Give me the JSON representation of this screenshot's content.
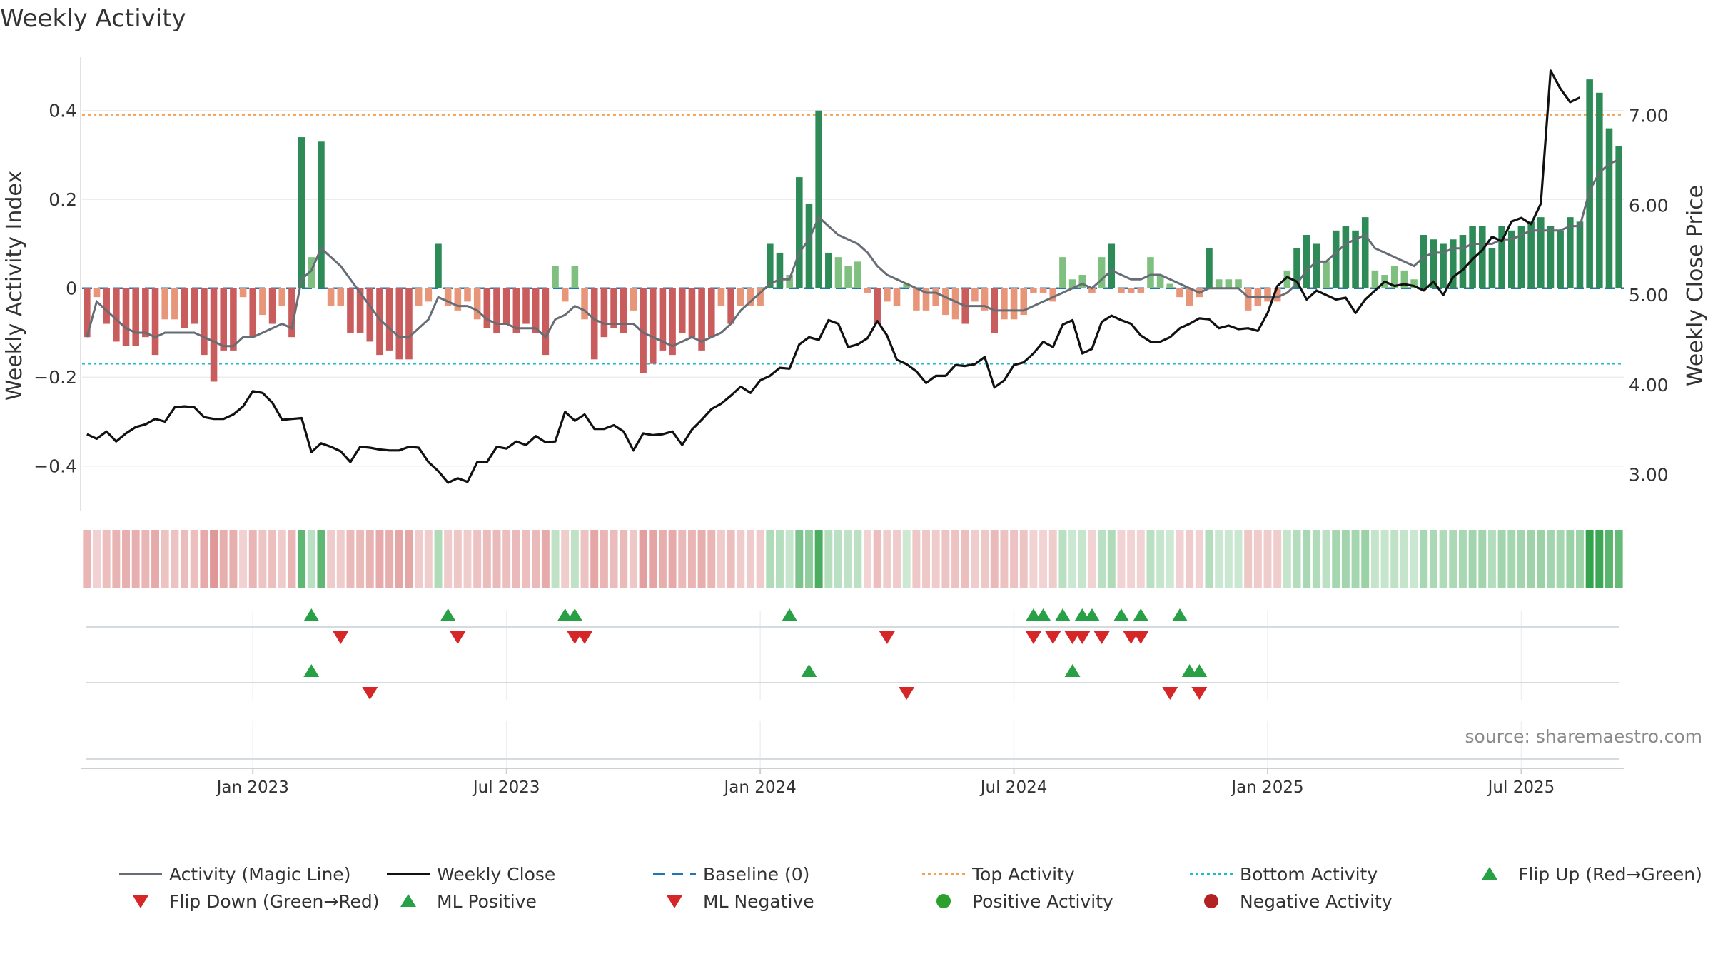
{
  "chart_data": {
    "type": "bar",
    "title": "Weekly Activity",
    "ylabel": "Weekly Activity Index",
    "y2label": "Weekly Close Price",
    "source": "source: sharemaestro.com",
    "ylim": [
      -0.5,
      0.52
    ],
    "y2lim": [
      2.6,
      7.65
    ],
    "yticks": [
      0.4,
      0.2,
      0,
      -0.2,
      -0.4
    ],
    "ytick_labels": [
      "0.4",
      "0.2",
      "0",
      "−0.2",
      "−0.4"
    ],
    "y2ticks": [
      7.0,
      6.0,
      5.0,
      4.0,
      3.0
    ],
    "y2tick_labels": [
      "7.00",
      "6.00",
      "5.00",
      "4.00",
      "3.00"
    ],
    "x_start": "2022-09-05",
    "x_end": "2025-09-22",
    "xticks": [
      {
        "label": "Jan 2023",
        "week": 17
      },
      {
        "label": "Jul 2023",
        "week": 43
      },
      {
        "label": "Jan 2024",
        "week": 69
      },
      {
        "label": "Jul 2024",
        "week": 95
      },
      {
        "label": "Jan 2025",
        "week": 121
      },
      {
        "label": "Jul 2025",
        "week": 147
      }
    ],
    "top_activity": 0.39,
    "bottom_activity": -0.17,
    "activity": [
      -0.11,
      -0.02,
      -0.08,
      -0.12,
      -0.13,
      -0.13,
      -0.11,
      -0.15,
      -0.07,
      -0.07,
      -0.09,
      -0.08,
      -0.15,
      -0.21,
      -0.14,
      -0.14,
      -0.02,
      -0.11,
      -0.06,
      -0.08,
      -0.04,
      -0.11,
      0.34,
      0.07,
      0.33,
      -0.04,
      -0.04,
      -0.1,
      -0.1,
      -0.12,
      -0.15,
      -0.14,
      -0.16,
      -0.16,
      -0.04,
      -0.03,
      0.1,
      -0.04,
      -0.05,
      -0.03,
      -0.07,
      -0.09,
      -0.1,
      -0.08,
      -0.1,
      -0.08,
      -0.1,
      -0.15,
      0.05,
      -0.03,
      0.05,
      -0.07,
      -0.16,
      -0.11,
      -0.09,
      -0.1,
      -0.05,
      -0.19,
      -0.17,
      -0.14,
      -0.15,
      -0.1,
      -0.11,
      -0.14,
      -0.11,
      -0.04,
      -0.08,
      -0.04,
      -0.04,
      -0.04,
      0.1,
      0.08,
      0.03,
      0.25,
      0.19,
      0.4,
      0.08,
      0.07,
      0.05,
      0.06,
      -0.01,
      -0.08,
      -0.03,
      -0.04,
      0.01,
      -0.05,
      -0.05,
      -0.04,
      -0.06,
      -0.07,
      -0.08,
      -0.03,
      -0.05,
      -0.1,
      -0.07,
      -0.07,
      -0.06,
      -0.01,
      -0.01,
      -0.03,
      0.07,
      0.02,
      0.03,
      -0.01,
      0.07,
      0.1,
      -0.01,
      -0.01,
      -0.01,
      0.07,
      0.03,
      0.01,
      -0.02,
      -0.04,
      -0.02,
      0.09,
      0.02,
      0.02,
      0.02,
      -0.05,
      -0.04,
      -0.03,
      -0.03,
      0.04,
      0.09,
      0.12,
      0.1,
      0.06,
      0.13,
      0.14,
      0.13,
      0.16,
      0.04,
      0.03,
      0.05,
      0.04,
      0.02,
      0.12,
      0.11,
      0.1,
      0.11,
      0.12,
      0.14,
      0.14,
      0.09,
      0.14,
      0.13,
      0.14,
      0.15,
      0.16,
      0.14,
      0.13,
      0.16,
      0.15,
      0.47,
      0.44,
      0.36,
      0.32
    ],
    "magic_line": [
      -0.11,
      -0.03,
      -0.05,
      -0.07,
      -0.09,
      -0.1,
      -0.1,
      -0.11,
      -0.1,
      -0.1,
      -0.1,
      -0.1,
      -0.11,
      -0.12,
      -0.13,
      -0.13,
      -0.11,
      -0.11,
      -0.1,
      -0.09,
      -0.08,
      -0.09,
      0.02,
      0.04,
      0.09,
      0.07,
      0.05,
      0.02,
      -0.01,
      -0.04,
      -0.07,
      -0.09,
      -0.11,
      -0.11,
      -0.09,
      -0.07,
      -0.02,
      -0.03,
      -0.04,
      -0.04,
      -0.05,
      -0.07,
      -0.08,
      -0.08,
      -0.09,
      -0.09,
      -0.09,
      -0.11,
      -0.07,
      -0.06,
      -0.04,
      -0.05,
      -0.07,
      -0.08,
      -0.08,
      -0.08,
      -0.08,
      -0.1,
      -0.11,
      -0.12,
      -0.13,
      -0.12,
      -0.11,
      -0.12,
      -0.11,
      -0.1,
      -0.08,
      -0.05,
      -0.03,
      -0.01,
      0.01,
      0.02,
      0.02,
      0.08,
      0.11,
      0.16,
      0.14,
      0.12,
      0.11,
      0.1,
      0.08,
      0.05,
      0.03,
      0.02,
      0.01,
      0.0,
      -0.01,
      -0.01,
      -0.02,
      -0.03,
      -0.04,
      -0.04,
      -0.04,
      -0.05,
      -0.05,
      -0.05,
      -0.05,
      -0.04,
      -0.03,
      -0.02,
      -0.01,
      0.0,
      0.01,
      0.0,
      0.02,
      0.04,
      0.03,
      0.02,
      0.02,
      0.03,
      0.03,
      0.02,
      0.01,
      0.0,
      -0.01,
      0.0,
      0.0,
      0.0,
      0.0,
      -0.02,
      -0.02,
      -0.02,
      -0.02,
      -0.01,
      0.01,
      0.04,
      0.06,
      0.06,
      0.08,
      0.1,
      0.11,
      0.12,
      0.09,
      0.08,
      0.07,
      0.06,
      0.05,
      0.07,
      0.08,
      0.08,
      0.09,
      0.09,
      0.1,
      0.1,
      0.1,
      0.11,
      0.11,
      0.12,
      0.13,
      0.13,
      0.13,
      0.13,
      0.14,
      0.14,
      0.22,
      0.26,
      0.28,
      0.29
    ],
    "weekly_close": [
      3.45,
      3.4,
      3.48,
      3.37,
      3.46,
      3.53,
      3.56,
      3.62,
      3.59,
      3.75,
      3.76,
      3.75,
      3.64,
      3.62,
      3.62,
      3.67,
      3.76,
      3.93,
      3.91,
      3.8,
      3.61,
      3.62,
      3.63,
      3.25,
      3.35,
      3.31,
      3.26,
      3.14,
      3.31,
      3.3,
      3.28,
      3.27,
      3.27,
      3.31,
      3.3,
      3.14,
      3.04,
      2.91,
      2.96,
      2.92,
      3.14,
      3.14,
      3.31,
      3.29,
      3.37,
      3.33,
      3.43,
      3.36,
      3.37,
      3.7,
      3.6,
      3.67,
      3.51,
      3.51,
      3.55,
      3.48,
      3.27,
      3.46,
      3.44,
      3.45,
      3.48,
      3.33,
      3.5,
      3.61,
      3.73,
      3.79,
      3.88,
      3.98,
      3.91,
      4.05,
      4.1,
      4.19,
      4.18,
      4.45,
      4.53,
      4.5,
      4.72,
      4.68,
      4.42,
      4.45,
      4.52,
      4.71,
      4.55,
      4.28,
      4.23,
      4.15,
      4.02,
      4.1,
      4.1,
      4.22,
      4.21,
      4.23,
      4.31,
      3.97,
      4.05,
      4.22,
      4.25,
      4.35,
      4.48,
      4.42,
      4.67,
      4.72,
      4.35,
      4.4,
      4.7,
      4.77,
      4.72,
      4.68,
      4.55,
      4.48,
      4.48,
      4.53,
      4.63,
      4.68,
      4.74,
      4.73,
      4.63,
      4.66,
      4.62,
      4.63,
      4.6,
      4.8,
      5.1,
      5.2,
      5.15,
      4.95,
      5.05,
      5.0,
      4.95,
      4.97,
      4.8,
      4.95,
      5.05,
      5.15,
      5.1,
      5.12,
      5.1,
      5.05,
      5.15,
      5.0,
      5.2,
      5.28,
      5.4,
      5.5,
      5.65,
      5.6,
      5.82,
      5.86,
      5.79,
      6.02,
      7.5,
      7.3,
      7.15,
      7.2
    ],
    "flip_up_weeks": [
      23,
      37,
      49,
      50,
      72,
      97,
      98,
      100,
      102,
      103,
      106,
      108,
      112
    ],
    "flip_down_weeks": [
      26,
      38,
      50,
      51,
      82,
      97,
      99,
      101,
      102,
      104,
      107,
      108
    ],
    "ml_positive_weeks": [
      23,
      74,
      101,
      114,
      113
    ],
    "ml_negative_weeks": [
      29,
      84,
      111,
      114
    ],
    "legend": [
      {
        "label": "Activity (Magic Line)",
        "kind": "line",
        "color": "#666d75"
      },
      {
        "label": "Weekly Close",
        "kind": "line",
        "color": "#111111"
      },
      {
        "label": "Baseline (0)",
        "kind": "dashed",
        "color": "#1f77b4"
      },
      {
        "label": "Top Activity",
        "kind": "dotted",
        "color": "#f2a154"
      },
      {
        "label": "Bottom Activity",
        "kind": "dotted",
        "color": "#17becf"
      },
      {
        "label": "Flip Up (Red→Green)",
        "kind": "tri-up",
        "color": "#27a046"
      },
      {
        "label": "Flip Down (Green→Red)",
        "kind": "tri-down",
        "color": "#d62728"
      },
      {
        "label": "ML Positive",
        "kind": "tri-up",
        "color": "#27a046"
      },
      {
        "label": "ML Negative",
        "kind": "tri-down",
        "color": "#d62728"
      },
      {
        "label": "Positive Activity",
        "kind": "dot",
        "color": "#2ca02c"
      },
      {
        "label": "Negative Activity",
        "kind": "dot",
        "color": "#b22222"
      }
    ],
    "colors": {
      "pos_strong": "#2e8b57",
      "pos_weak": "#7fbf7f",
      "neg_strong": "#c95c5c",
      "neg_weak": "#e8967a",
      "magic_line": "#666d75",
      "close": "#111111",
      "baseline": "#1f77b4",
      "top": "#f2a154",
      "bottom": "#17becf",
      "tri_up": "#27a046",
      "tri_down": "#d62728"
    }
  }
}
